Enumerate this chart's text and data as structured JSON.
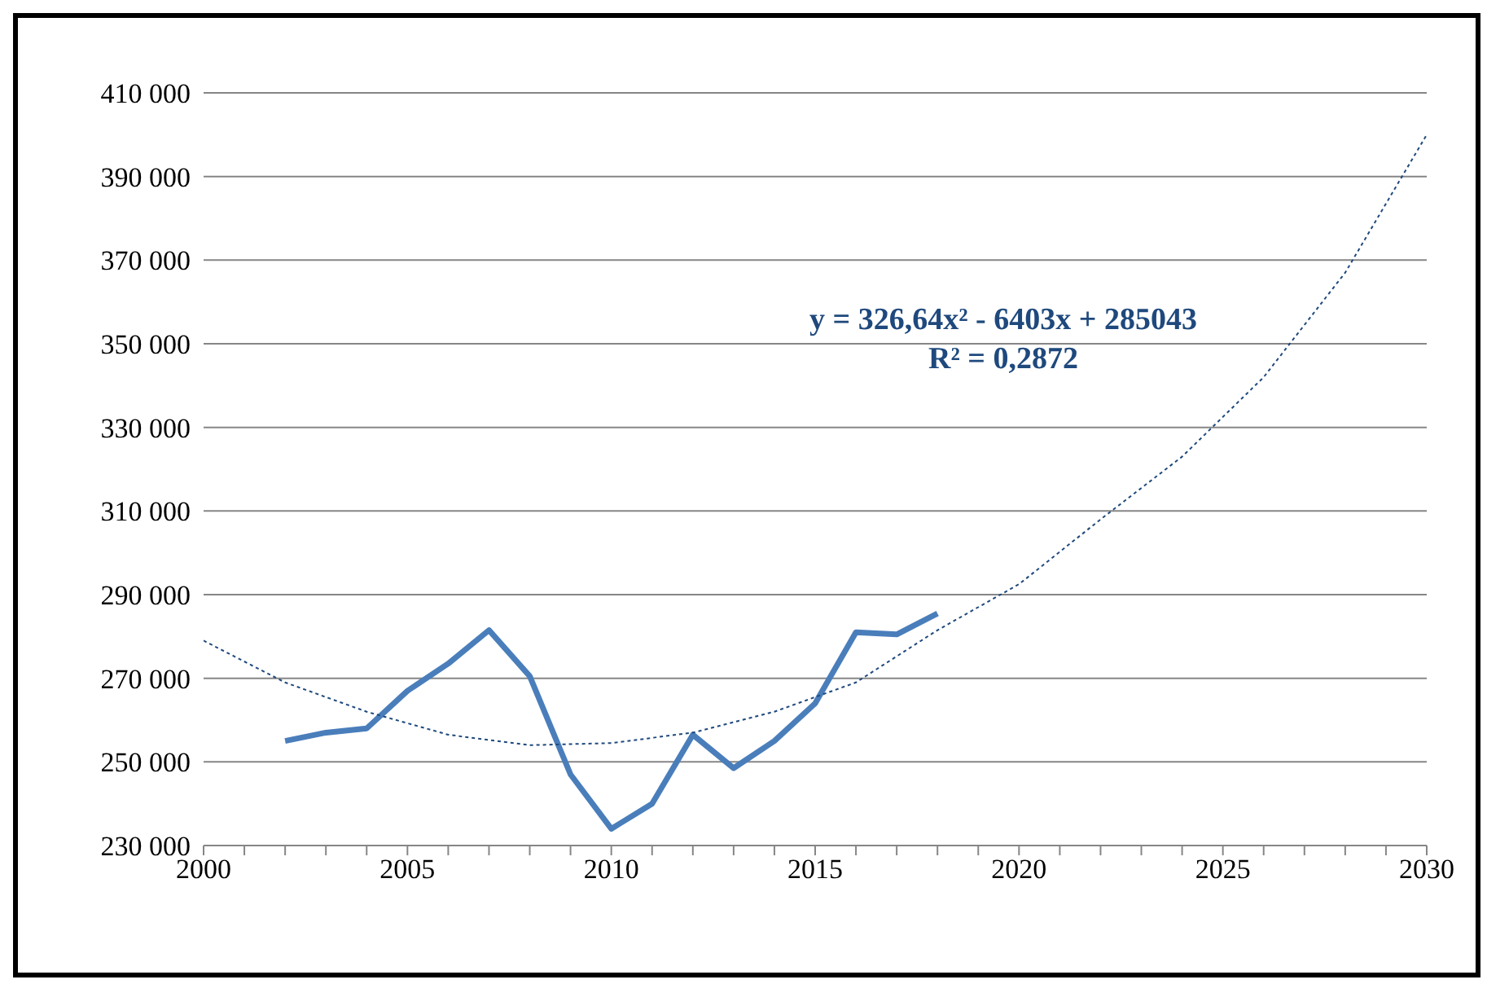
{
  "chart_data": {
    "type": "line",
    "xlim": [
      2000,
      2030
    ],
    "xticks": [
      2000,
      {
        "value": 2001,
        "label": null
      },
      {
        "value": 2002,
        "label": null
      },
      {
        "value": 2003,
        "label": null
      },
      {
        "value": 2004,
        "label": null
      },
      2005,
      {
        "value": 2006,
        "label": null
      },
      {
        "value": 2007,
        "label": null
      },
      {
        "value": 2008,
        "label": null
      },
      {
        "value": 2009,
        "label": null
      },
      2010,
      {
        "value": 2011,
        "label": null
      },
      {
        "value": 2012,
        "label": null
      },
      {
        "value": 2013,
        "label": null
      },
      {
        "value": 2014,
        "label": null
      },
      2015,
      {
        "value": 2016,
        "label": null
      },
      {
        "value": 2017,
        "label": null
      },
      {
        "value": 2018,
        "label": null
      },
      {
        "value": 2019,
        "label": null
      },
      2020,
      {
        "value": 2021,
        "label": null
      },
      {
        "value": 2022,
        "label": null
      },
      {
        "value": 2023,
        "label": null
      },
      {
        "value": 2024,
        "label": null
      },
      2025,
      {
        "value": 2026,
        "label": null
      },
      {
        "value": 2027,
        "label": null
      },
      {
        "value": 2028,
        "label": null
      },
      {
        "value": 2029,
        "label": null
      },
      2030
    ],
    "ylim": [
      230000,
      410000
    ],
    "yticks": [
      {
        "value": 230000,
        "label": "230 000"
      },
      {
        "value": 250000,
        "label": "250 000"
      },
      {
        "value": 270000,
        "label": "270 000"
      },
      {
        "value": 290000,
        "label": "290 000"
      },
      {
        "value": 310000,
        "label": "310 000"
      },
      {
        "value": 330000,
        "label": "330 000"
      },
      {
        "value": 350000,
        "label": "350 000"
      },
      {
        "value": 370000,
        "label": "370 000"
      },
      {
        "value": 390000,
        "label": "390 000"
      },
      {
        "value": 410000,
        "label": "410 000"
      }
    ],
    "grid": "y",
    "marker": "none",
    "legend": false,
    "series": [
      {
        "color": "#4a7ebb",
        "x": [
          2002,
          2003,
          2004,
          2005,
          2006,
          2007,
          2008,
          2009,
          2010,
          2011,
          2012,
          2013,
          2014,
          2015,
          2016,
          2017,
          2018
        ],
        "values": [
          255000,
          257000,
          258000,
          267000,
          273500,
          281500,
          270500,
          247000,
          234000,
          240000,
          256500,
          248500,
          255000,
          264000,
          281000,
          280500,
          285500
        ]
      },
      {
        "line_style": "dotted",
        "color": "#1f497d",
        "x": [
          2000,
          2002,
          2004,
          2006,
          2008,
          2010,
          2012,
          2014,
          2016,
          2018,
          2020,
          2022,
          2024,
          2026,
          2028,
          2030
        ],
        "values": [
          279000,
          269000,
          262000,
          256500,
          254000,
          254500,
          257000,
          262000,
          269000,
          281500,
          292500,
          308000,
          323000,
          342000,
          367000,
          400000
        ]
      }
    ],
    "annotations": [
      "y = 326,64x² - 6403x + 285043",
      "R² = 0,2872"
    ]
  }
}
